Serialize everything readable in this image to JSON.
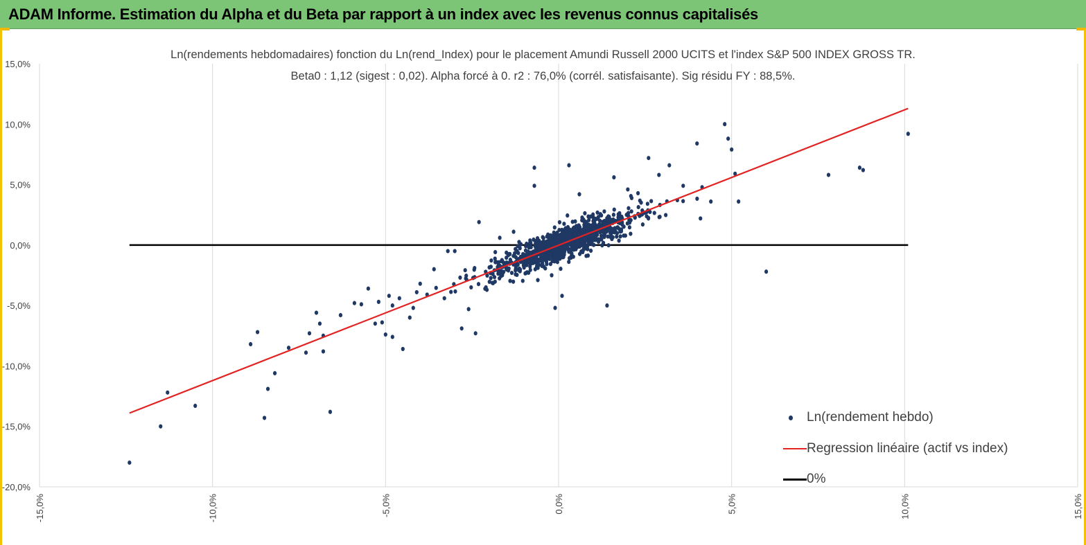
{
  "banner": {
    "title": "ADAM Informe. Estimation du Alpha et du Beta par rapport à un index avec les revenus connus capitalisés"
  },
  "colors": {
    "banner_bg": "#7cc576",
    "points": "#1f3864",
    "regression": "#e32222",
    "zero_line": "#000000",
    "grid": "#d9d9d9",
    "frame_accent": "#f2c200"
  },
  "chart_data": {
    "type": "scatter",
    "title": "Ln(rendements hebdomadaires) fonction du Ln(rend_Index) pour le placement Amundi Russell 2000 UCITS et l'index S&P 500 INDEX GROSS TR.",
    "subtitle": "Beta0 : 1,12  (sigest : 0,02).  Alpha forcé à 0. r2 : 76,0% (corrél. satisfaisante). Sig résidu FY : 88,5%.",
    "xlim": [
      -15,
      15
    ],
    "ylim": [
      -20,
      15
    ],
    "x_ticks": [
      "-15,0%",
      "-10,0%",
      "-5,0%",
      "0,0%",
      "5,0%",
      "10,0%",
      "15,0%"
    ],
    "y_ticks": [
      "15,0%",
      "10,0%",
      "5,0%",
      "0,0%",
      "-5,0%",
      "-10,0%",
      "-15,0%",
      "-20,0%"
    ],
    "grid": "vertical gridlines",
    "legend_position": "bottom-right",
    "series": [
      {
        "name": "Ln(rendement hebdo)",
        "kind": "points",
        "points_note": "selected visible outliers; dense cloud around origin rendered along the regression",
        "points": [
          [
            -12.4,
            -18.0
          ],
          [
            -11.5,
            -15.0
          ],
          [
            -11.3,
            -12.2
          ],
          [
            -10.5,
            -13.3
          ],
          [
            -8.9,
            -8.2
          ],
          [
            -8.7,
            -7.2
          ],
          [
            -8.5,
            -14.3
          ],
          [
            -8.4,
            -11.9
          ],
          [
            -8.2,
            -10.6
          ],
          [
            -7.8,
            -8.5
          ],
          [
            -7.3,
            -8.9
          ],
          [
            -7.2,
            -7.3
          ],
          [
            -7.0,
            -5.6
          ],
          [
            -6.9,
            -6.5
          ],
          [
            -6.8,
            -7.5
          ],
          [
            -6.8,
            -8.8
          ],
          [
            -6.6,
            -13.8
          ],
          [
            -6.3,
            -5.8
          ],
          [
            -5.9,
            -4.8
          ],
          [
            -5.7,
            -4.9
          ],
          [
            -5.5,
            -3.6
          ],
          [
            -5.3,
            -6.5
          ],
          [
            -5.2,
            -4.7
          ],
          [
            -5.1,
            -6.4
          ],
          [
            -5.0,
            -7.4
          ],
          [
            -4.9,
            -4.2
          ],
          [
            -4.8,
            -7.6
          ],
          [
            -4.8,
            -5.0
          ],
          [
            -4.6,
            -4.4
          ],
          [
            -4.5,
            -8.6
          ],
          [
            -4.3,
            -6.0
          ],
          [
            -4.2,
            -5.2
          ],
          [
            -4.1,
            -3.9
          ],
          [
            -4.0,
            -3.2
          ],
          [
            -3.8,
            -4.1
          ],
          [
            -3.6,
            -2.0
          ],
          [
            -3.3,
            -4.4
          ],
          [
            -3.2,
            -0.5
          ],
          [
            -3.0,
            -0.5
          ],
          [
            -2.8,
            -6.9
          ],
          [
            -2.6,
            -5.3
          ],
          [
            -2.4,
            -7.3
          ],
          [
            -2.3,
            1.9
          ],
          [
            -2.1,
            -3.5
          ],
          [
            -1.9,
            -2.4
          ],
          [
            -1.8,
            -1.4
          ],
          [
            -1.7,
            0.6
          ],
          [
            -1.3,
            1.1
          ],
          [
            -1.2,
            -0.5
          ],
          [
            -0.7,
            6.4
          ],
          [
            -0.7,
            4.9
          ],
          [
            -0.6,
            -2.9
          ],
          [
            -0.2,
            -2.5
          ],
          [
            -0.1,
            -5.2
          ],
          [
            0.1,
            -4.2
          ],
          [
            0.3,
            6.6
          ],
          [
            0.6,
            4.2
          ],
          [
            0.8,
            -0.9
          ],
          [
            1.0,
            2.3
          ],
          [
            1.4,
            -5.0
          ],
          [
            1.6,
            5.6
          ],
          [
            2.0,
            4.6
          ],
          [
            2.6,
            7.2
          ],
          [
            2.9,
            5.8
          ],
          [
            3.2,
            6.6
          ],
          [
            3.6,
            4.9
          ],
          [
            4.0,
            8.4
          ],
          [
            4.1,
            2.2
          ],
          [
            4.4,
            3.6
          ],
          [
            4.8,
            10.0
          ],
          [
            4.9,
            8.8
          ],
          [
            5.0,
            7.9
          ],
          [
            5.1,
            5.9
          ],
          [
            5.2,
            3.6
          ],
          [
            6.0,
            -2.2
          ],
          [
            7.8,
            5.8
          ],
          [
            8.7,
            6.4
          ],
          [
            8.8,
            6.2
          ],
          [
            10.1,
            9.2
          ]
        ]
      },
      {
        "name": "Regression linéaire (actif vs index)",
        "kind": "line",
        "x": [
          -12.4,
          10.1
        ],
        "y": [
          -13.9,
          11.3
        ]
      },
      {
        "name": "0%",
        "kind": "line",
        "x": [
          -12.4,
          10.1
        ],
        "y": [
          0,
          0
        ]
      }
    ],
    "regression": {
      "beta": 1.12,
      "alpha": 0
    }
  }
}
